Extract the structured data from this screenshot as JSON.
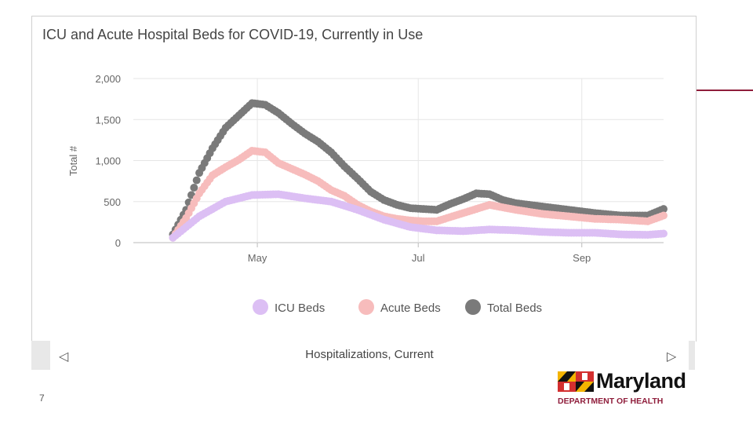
{
  "slide_number": "7",
  "bottom_bar": {
    "label": "Hospitalizations, Current",
    "left_arrow": "chevron-left-icon",
    "right_arrow": "chevron-right-icon"
  },
  "logo": {
    "name": "Maryland",
    "department": "DEPARTMENT OF HEALTH",
    "icon": "maryland-flag-icon"
  },
  "colors": {
    "accent": "#8f1d3b",
    "icu": "#dcbff4",
    "acute": "#f7bcbc",
    "total": "#7a7a7a"
  },
  "chart_data": {
    "type": "scatter",
    "title": "ICU and Acute Hospital Beds for COVID-19, Currently in Use",
    "xlabel": "",
    "ylabel": "Total #",
    "ylim": [
      0,
      2000
    ],
    "yticks": [
      0,
      500,
      1000,
      1500,
      2000
    ],
    "ytick_labels": [
      "0",
      "500",
      "1,000",
      "1,500",
      "2,000"
    ],
    "x_unit": "day of year 2020",
    "xlim": [
      75,
      276
    ],
    "xticks": [
      122,
      183,
      245
    ],
    "xtick_labels": [
      "May",
      "Jul",
      "Sep"
    ],
    "legend_position": "bottom",
    "series": [
      {
        "name": "ICU Beds",
        "x": [
          90,
          100,
          110,
          120,
          130,
          140,
          150,
          160,
          170,
          180,
          190,
          200,
          210,
          220,
          230,
          240,
          250,
          260,
          270,
          276
        ],
        "y": [
          60,
          320,
          500,
          580,
          590,
          540,
          500,
          400,
          280,
          190,
          150,
          140,
          160,
          150,
          130,
          120,
          120,
          100,
          95,
          110
        ]
      },
      {
        "name": "Acute Beds",
        "x": [
          90,
          95,
          100,
          105,
          110,
          115,
          120,
          125,
          130,
          135,
          140,
          145,
          150,
          155,
          160,
          165,
          170,
          175,
          180,
          185,
          190,
          200,
          210,
          220,
          230,
          240,
          250,
          260,
          270,
          276
        ],
        "y": [
          60,
          300,
          600,
          820,
          920,
          1010,
          1120,
          1100,
          970,
          900,
          830,
          750,
          640,
          570,
          460,
          380,
          320,
          290,
          270,
          260,
          260,
          360,
          460,
          400,
          350,
          320,
          290,
          280,
          260,
          330
        ]
      },
      {
        "name": "Total Beds",
        "x": [
          90,
          95,
          100,
          105,
          110,
          115,
          120,
          125,
          130,
          135,
          140,
          145,
          150,
          155,
          160,
          165,
          170,
          175,
          180,
          185,
          190,
          195,
          200,
          205,
          210,
          215,
          220,
          230,
          240,
          250,
          260,
          270,
          276
        ],
        "y": [
          100,
          400,
          850,
          1150,
          1400,
          1550,
          1700,
          1680,
          1580,
          1450,
          1330,
          1230,
          1100,
          930,
          780,
          620,
          520,
          460,
          420,
          410,
          400,
          470,
          530,
          600,
          590,
          520,
          480,
          440,
          400,
          360,
          330,
          330,
          410
        ]
      }
    ]
  }
}
